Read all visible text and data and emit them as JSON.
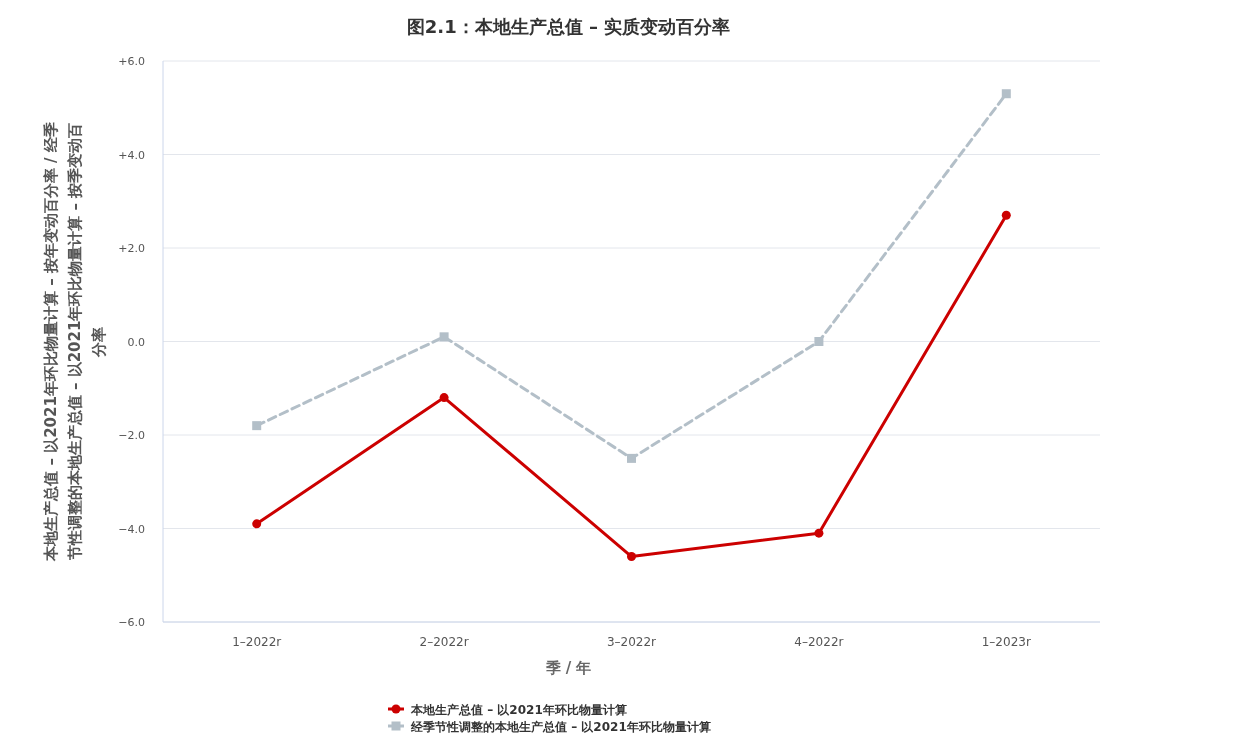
{
  "chart_data": {
    "type": "line",
    "title": "图2.1：本地生产总值 – 实质变动百分率",
    "xlabel": "季 / 年",
    "ylabel": "本地生产总值 – 以2021年环比物量计算 – 按年变动百分率 / 经季节性调整的本地生产总值 – 以2021年环比物量计算 – 按季变动百分率",
    "categories": [
      "1–2022r",
      "2–2022r",
      "3–2022r",
      "4–2022r",
      "1–2023r"
    ],
    "series": [
      {
        "name": "本地生产总值 – 以2021年环比物量计算",
        "color": "#cc0000",
        "marker": "circle",
        "line_style": "solid",
        "values": [
          -3.9,
          -1.2,
          -4.6,
          -4.1,
          2.7
        ]
      },
      {
        "name": "经季节性调整的本地生产总值 – 以2021年环比物量计算",
        "color": "#b3bfc8",
        "marker": "square",
        "line_style": "dashed",
        "values": [
          -1.8,
          0.1,
          -2.5,
          0.0,
          5.3
        ]
      }
    ],
    "ylim": [
      -6,
      6
    ],
    "yticks": [
      {
        "value": -6,
        "label": "−6.0"
      },
      {
        "value": -4,
        "label": "−4.0"
      },
      {
        "value": -2,
        "label": "−2.0"
      },
      {
        "value": 0,
        "label": "0.0"
      },
      {
        "value": 2,
        "label": "+2.0"
      },
      {
        "value": 4,
        "label": "+4.0"
      },
      {
        "value": 6,
        "label": "+6.0"
      }
    ],
    "grid": "y",
    "legend": "bottom"
  }
}
